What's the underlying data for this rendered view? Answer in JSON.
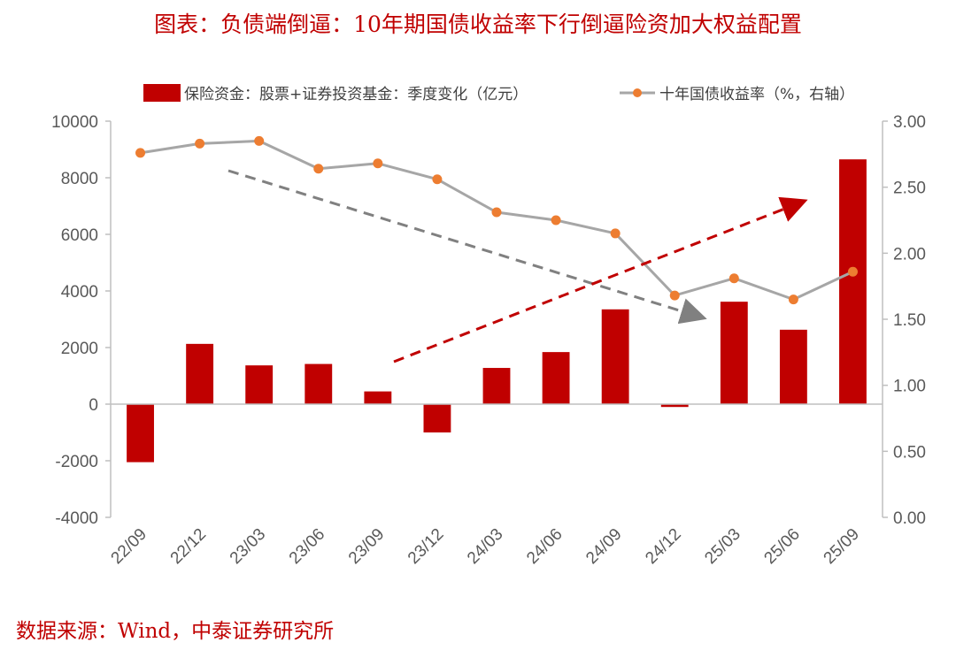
{
  "title": "图表：负债端倒逼：10年期国债收益率下行倒逼险资加大权益配置",
  "source": "数据来源：Wind，中泰证券研究所",
  "chart_data": {
    "type": "bar+line",
    "categories": [
      "22/09",
      "22/12",
      "23/03",
      "23/06",
      "23/09",
      "23/12",
      "24/03",
      "24/06",
      "24/09",
      "24/12",
      "25/03",
      "25/06",
      "25/09"
    ],
    "series": [
      {
        "name": "保险资金：股票+证券投资基金：季度变化（亿元）",
        "type": "bar",
        "axis": "left",
        "color": "#c00000",
        "values": [
          -2050,
          2130,
          1370,
          1420,
          450,
          -1000,
          1280,
          1840,
          3350,
          -100,
          3620,
          2630,
          8650
        ]
      },
      {
        "name": "十年国债收益率（%，右轴）",
        "type": "line",
        "axis": "right",
        "line_color": "#a6a6a6",
        "marker_color": "#ed7d31",
        "values": [
          2.76,
          2.83,
          2.85,
          2.64,
          2.68,
          2.56,
          2.31,
          2.25,
          2.15,
          1.68,
          1.81,
          1.65,
          1.86
        ]
      }
    ],
    "y_left": {
      "min": -4000,
      "max": 10000,
      "step": 2000,
      "ticks": [
        "-4000",
        "-2000",
        "0",
        "2000",
        "4000",
        "6000",
        "8000",
        "10000"
      ]
    },
    "y_right": {
      "min": 0,
      "max": 3,
      "step": 0.5,
      "ticks": [
        "0.00",
        "0.50",
        "1.00",
        "1.50",
        "2.00",
        "2.50",
        "3.00"
      ]
    },
    "legend": "top",
    "grid": false,
    "annotations": [
      {
        "kind": "dashed-arrow",
        "color": "#808080",
        "direction": "down",
        "from_category": "22/12",
        "to_category": "24/12"
      },
      {
        "kind": "dashed-arrow",
        "color": "#c00000",
        "direction": "up",
        "from_category": "23/09",
        "to_category": "25/09"
      }
    ]
  }
}
